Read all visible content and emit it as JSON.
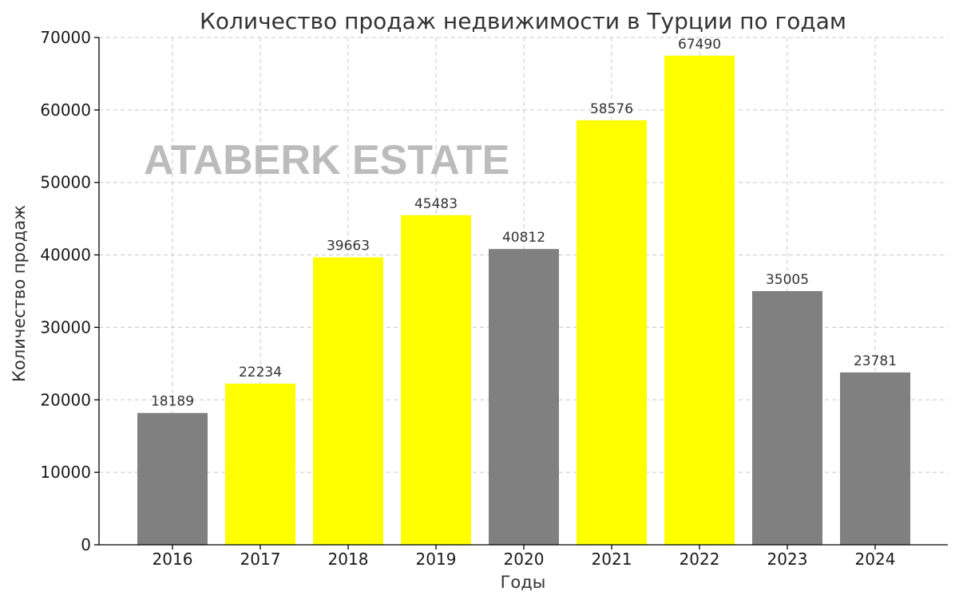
{
  "chart_data": {
    "type": "bar",
    "title": "Количество продаж недвижимости в Турции по годам",
    "xlabel": "Годы",
    "ylabel": "Количество продаж",
    "categories": [
      "2016",
      "2017",
      "2018",
      "2019",
      "2020",
      "2021",
      "2022",
      "2023",
      "2024"
    ],
    "values": [
      18189,
      22234,
      39663,
      45483,
      40812,
      58576,
      67490,
      35005,
      23781
    ],
    "bar_colors": [
      "#808080",
      "#ffff00",
      "#ffff00",
      "#ffff00",
      "#808080",
      "#ffff00",
      "#ffff00",
      "#808080",
      "#808080"
    ],
    "ylim": [
      0,
      70000
    ],
    "yticks": [
      0,
      10000,
      20000,
      30000,
      40000,
      50000,
      60000,
      70000
    ],
    "grid": true,
    "data_labels": true,
    "watermark": "ATABERK ESTATE"
  }
}
